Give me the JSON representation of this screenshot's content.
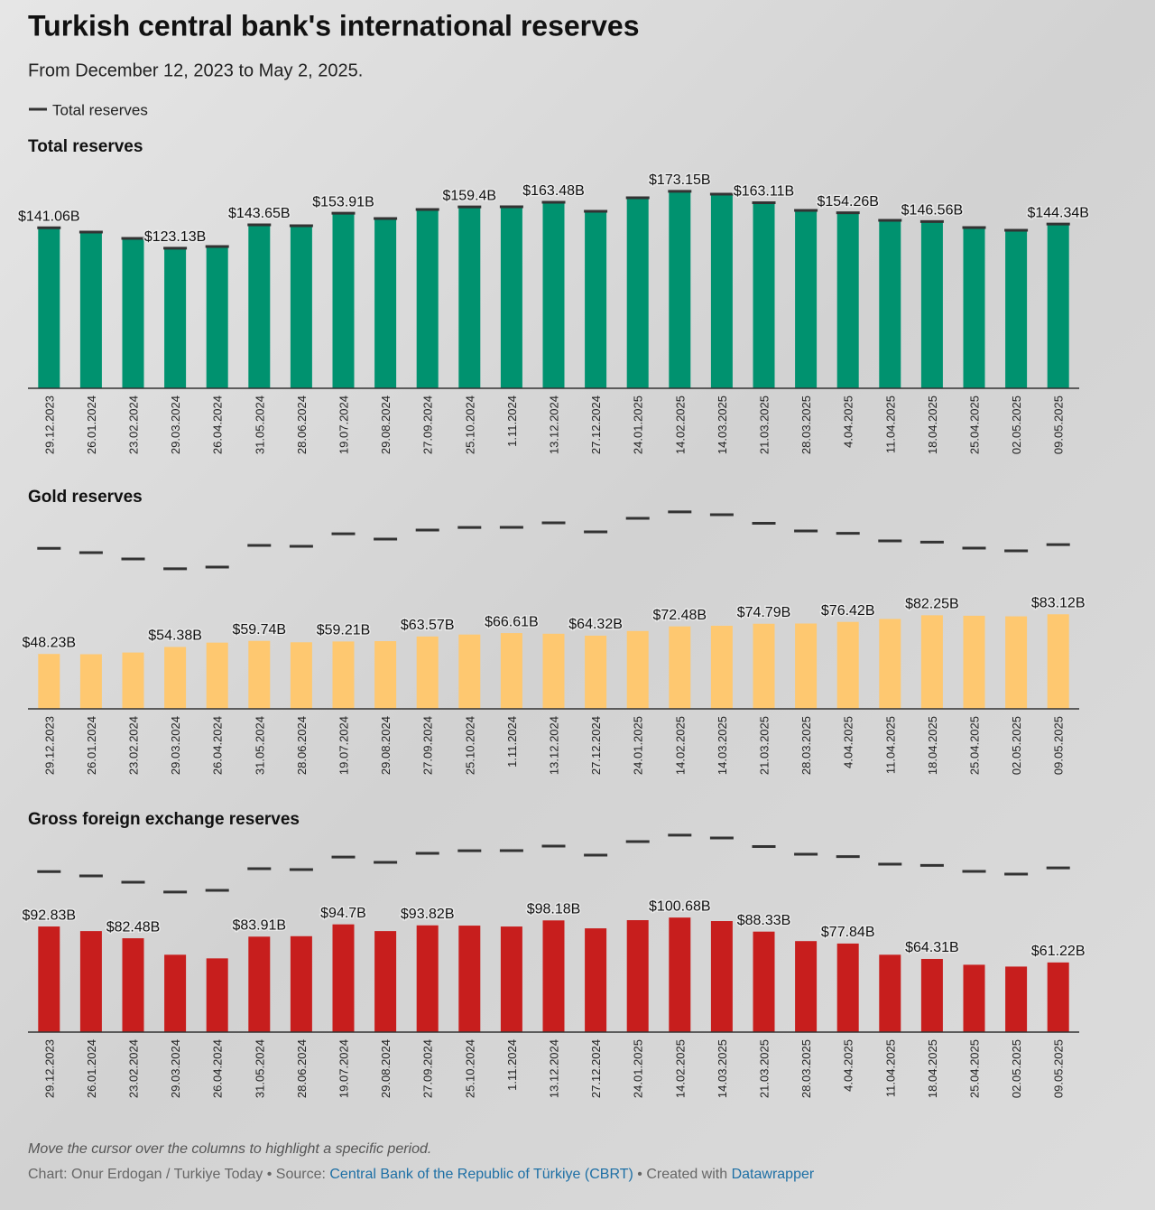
{
  "title": "Turkish central bank's international reserves",
  "subtitle": "From December 12, 2023 to May 2, 2025.",
  "legend": {
    "name": "Total reserves",
    "color": "#333333"
  },
  "footer": {
    "note": "Move the cursor over the columns to highlight a specific period.",
    "credit": "Chart: Onur Erdogan / Turkiye Today • Source:",
    "source": "Central Bank of the Republic of Türkiye (CBRT)",
    "created": "• Created with",
    "tool": "Datawrapper"
  },
  "chart_data": [
    {
      "type": "bar",
      "title": "Total reserves",
      "color": "#00926f",
      "marker_color": "#333333",
      "categories": [
        "29.12.2023",
        "26.01.2024",
        "23.02.2024",
        "29.03.2024",
        "26.04.2024",
        "31.05.2024",
        "28.06.2024",
        "19.07.2024",
        "29.08.2024",
        "27.09.2024",
        "25.10.2024",
        "1.11.2024",
        "13.12.2024",
        "27.12.2024",
        "24.01.2025",
        "14.02.2025",
        "14.03.2025",
        "21.03.2025",
        "28.03.2025",
        "4.04.2025",
        "11.04.2025",
        "18.04.2025",
        "25.04.2025",
        "02.05.2025",
        "09.05.2025"
      ],
      "values": [
        141.06,
        137.3,
        131.7,
        123.13,
        124.6,
        143.65,
        142.9,
        153.91,
        149.2,
        157.1,
        159.4,
        159.5,
        163.48,
        155.6,
        167.5,
        173.15,
        170.6,
        163.11,
        156.3,
        154.26,
        147.6,
        146.56,
        141.3,
        138.9,
        144.34
      ],
      "value_labels": [
        "$141.06B",
        null,
        null,
        "$123.13B",
        null,
        "$143.65B",
        null,
        "$153.91B",
        null,
        null,
        "$159.4B",
        null,
        "$163.48B",
        null,
        null,
        "$173.15B",
        null,
        "$163.11B",
        null,
        "$154.26B",
        null,
        "$146.56B",
        null,
        null,
        "$144.34B"
      ],
      "marker_values": [
        141.06,
        137.3,
        131.7,
        123.13,
        124.6,
        143.65,
        142.9,
        153.91,
        149.2,
        157.1,
        159.4,
        159.5,
        163.48,
        155.6,
        167.5,
        173.15,
        170.6,
        163.11,
        156.3,
        154.26,
        147.6,
        146.56,
        141.3,
        138.9,
        144.34
      ],
      "ylim": [
        0,
        200
      ]
    },
    {
      "type": "bar",
      "title": "Gold reserves",
      "color": "#fec870",
      "marker_color": "#333333",
      "categories": [
        "29.12.2023",
        "26.01.2024",
        "23.02.2024",
        "29.03.2024",
        "26.04.2024",
        "31.05.2024",
        "28.06.2024",
        "19.07.2024",
        "29.08.2024",
        "27.09.2024",
        "25.10.2024",
        "1.11.2024",
        "13.12.2024",
        "27.12.2024",
        "24.01.2025",
        "14.02.2025",
        "14.03.2025",
        "21.03.2025",
        "28.03.2025",
        "4.04.2025",
        "11.04.2025",
        "18.04.2025",
        "25.04.2025",
        "02.05.2025",
        "09.05.2025"
      ],
      "values": [
        48.23,
        48.0,
        49.5,
        54.38,
        58.2,
        59.74,
        58.5,
        59.21,
        59.5,
        63.57,
        65.3,
        66.61,
        66.0,
        64.32,
        68.4,
        72.48,
        73.0,
        74.79,
        75.0,
        76.42,
        79.0,
        82.25,
        81.8,
        81.3,
        83.12
      ],
      "value_labels": [
        "$48.23B",
        null,
        null,
        "$54.38B",
        null,
        "$59.74B",
        null,
        "$59.21B",
        null,
        "$63.57B",
        null,
        "$66.61B",
        null,
        "$64.32B",
        null,
        "$72.48B",
        null,
        "$74.79B",
        null,
        "$76.42B",
        null,
        "$82.25B",
        null,
        null,
        "$83.12B"
      ],
      "marker_values": [
        141.06,
        137.3,
        131.7,
        123.13,
        124.6,
        143.65,
        142.9,
        153.91,
        149.2,
        157.1,
        159.4,
        159.5,
        163.48,
        155.6,
        167.5,
        173.15,
        170.6,
        163.11,
        156.3,
        154.26,
        147.6,
        146.56,
        141.3,
        138.9,
        144.34
      ],
      "ylim": [
        0,
        200
      ]
    },
    {
      "type": "bar",
      "title": "Gross foreign exchange reserves",
      "color": "#c71e1d",
      "marker_color": "#333333",
      "categories": [
        "29.12.2023",
        "26.01.2024",
        "23.02.2024",
        "29.03.2024",
        "26.04.2024",
        "31.05.2024",
        "28.06.2024",
        "19.07.2024",
        "29.08.2024",
        "27.09.2024",
        "25.10.2024",
        "1.11.2024",
        "13.12.2024",
        "27.12.2024",
        "24.01.2025",
        "14.02.2025",
        "14.03.2025",
        "21.03.2025",
        "28.03.2025",
        "4.04.2025",
        "11.04.2025",
        "18.04.2025",
        "25.04.2025",
        "02.05.2025",
        "09.05.2025"
      ],
      "values": [
        92.83,
        88.8,
        82.48,
        68.0,
        64.8,
        83.91,
        84.3,
        94.7,
        88.8,
        93.82,
        93.6,
        92.8,
        98.18,
        91.2,
        98.4,
        100.68,
        97.6,
        88.33,
        80.0,
        77.84,
        68.0,
        64.31,
        59.2,
        57.6,
        61.22
      ],
      "value_labels": [
        "$92.83B",
        null,
        "$82.48B",
        null,
        null,
        "$83.91B",
        null,
        "$94.7B",
        null,
        "$93.82B",
        null,
        null,
        "$98.18B",
        null,
        null,
        "$100.68B",
        null,
        "$88.33B",
        null,
        "$77.84B",
        null,
        "$64.31B",
        null,
        null,
        "$61.22B"
      ],
      "marker_values": [
        141.06,
        137.3,
        131.7,
        123.13,
        124.6,
        143.65,
        142.9,
        153.91,
        149.2,
        157.1,
        159.4,
        159.5,
        163.48,
        155.6,
        167.5,
        173.15,
        170.6,
        163.11,
        156.3,
        154.26,
        147.6,
        146.56,
        141.3,
        138.9,
        144.34
      ],
      "ylim": [
        0,
        200
      ]
    }
  ]
}
